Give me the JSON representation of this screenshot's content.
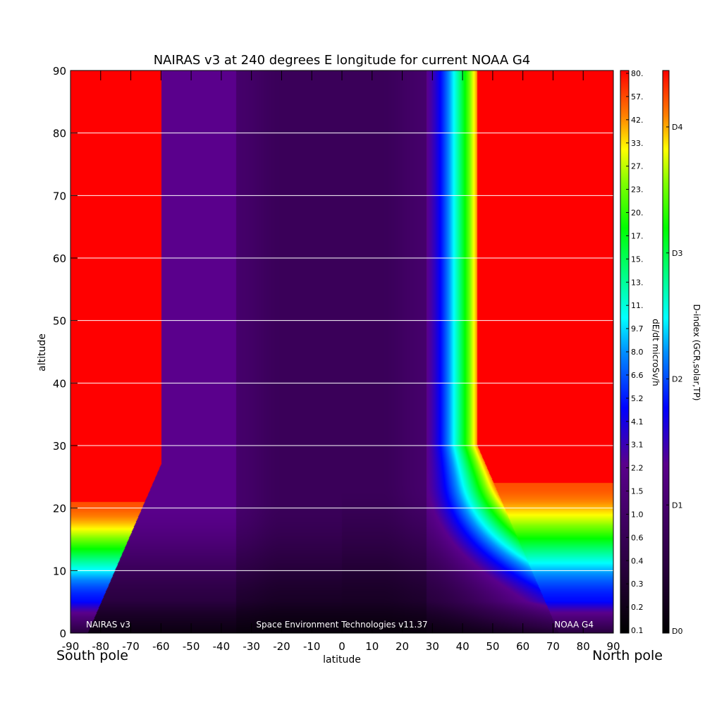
{
  "chart_data": {
    "type": "heatmap",
    "title": "NAIRAS v3 at 240 degrees E longitude for current NOAA G4",
    "xlabel": "latitude",
    "ylabel": "altitude",
    "xlim": [
      -90,
      90
    ],
    "ylim": [
      0,
      90
    ],
    "x_ticks": [
      "-90",
      "-80",
      "-70",
      "-60",
      "-50",
      "-40",
      "-30",
      "-20",
      "-10",
      "0",
      "10",
      "20",
      "30",
      "40",
      "50",
      "60",
      "70",
      "80",
      "90"
    ],
    "y_ticks": [
      "0",
      "10",
      "20",
      "30",
      "40",
      "50",
      "60",
      "70",
      "80",
      "90"
    ],
    "grid": "horizontal lines at each y tick",
    "x_end_labels": {
      "left": "South pole",
      "right": "North pole"
    },
    "annotations": {
      "left": "NAIRAS v3",
      "center": "Space Environment Technologies v11.37",
      "right": "NOAA G4"
    },
    "colorbar_dose": {
      "label": "dE/dt microSv/h",
      "ticks": [
        "80.",
        "57.",
        "42.",
        "33.",
        "27.",
        "23.",
        "20.",
        "17.",
        "15.",
        "13.",
        "11.",
        "9.7",
        "8.0",
        "6.6",
        "5.2",
        "4.1",
        "3.1",
        "2.2",
        "1.5",
        "1.0",
        "0.6",
        "0.4",
        "0.3",
        "0.2",
        "0.1"
      ]
    },
    "colorbar_index": {
      "label": "D-index (GCR,solar,TP)",
      "ticks": [
        "D4",
        "D3",
        "D2",
        "D1",
        "D0"
      ]
    },
    "field_description": {
      "high_dose_region_boundary_latitude_south": -60,
      "high_dose_region_boundary_latitude_north": 45,
      "high_dose_region_min_altitude_south": 21,
      "high_dose_region_min_altitude_north": 24,
      "low_dose_core_latitude_range": [
        -35,
        28
      ],
      "max_value": 80,
      "min_value": 0.1
    },
    "colors": {
      "max": "#ff0000",
      "high": "#ffff00",
      "mid": "#00ff00",
      "cyan": "#00ffff",
      "blue": "#0000ff",
      "purple": "#4b0082",
      "min": "#000000"
    }
  }
}
